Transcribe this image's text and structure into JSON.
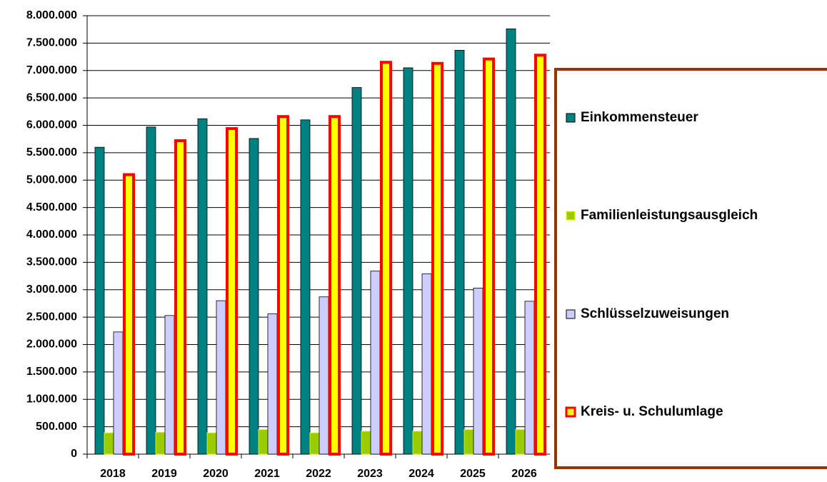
{
  "chart_data": {
    "type": "bar",
    "categories": [
      "2018",
      "2019",
      "2020",
      "2021",
      "2022",
      "2023",
      "2024",
      "2025",
      "2026"
    ],
    "series": [
      {
        "name": "Einkommensteuer",
        "color": "#008080",
        "edgecolor": "#000000",
        "values": [
          5600000,
          5970000,
          6120000,
          5760000,
          6100000,
          6690000,
          7050000,
          7370000,
          7760000
        ]
      },
      {
        "name": "Familienleistungsausgleich",
        "color": "#99cc00",
        "edgecolor": "#ffff00",
        "values": [
          390000,
          400000,
          390000,
          450000,
          390000,
          420000,
          420000,
          450000,
          450000
        ]
      },
      {
        "name": "Schlüsselzuweisungen",
        "color": "#ccccff",
        "edgecolor": "#000000",
        "values": [
          2230000,
          2530000,
          2800000,
          2560000,
          2870000,
          3340000,
          3290000,
          3030000,
          2790000
        ]
      },
      {
        "name": "Kreis- u. Schulumlage",
        "color": "#ffff00",
        "edgecolor": "#ff0000",
        "values": [
          5100000,
          5720000,
          5940000,
          6160000,
          6160000,
          7150000,
          7130000,
          7210000,
          7280000
        ]
      }
    ],
    "ylim": [
      0,
      8000000
    ],
    "yticks": [
      0,
      {
        "value": 500000,
        "label": "500.000"
      },
      {
        "value": 1000000,
        "label": "1.000.000"
      },
      {
        "value": 1500000,
        "label": "1.500.000"
      },
      {
        "value": 2000000,
        "label": "2.000.000"
      },
      {
        "value": 2500000,
        "label": "2.500.000"
      },
      {
        "value": 3000000,
        "label": "3.000.000"
      },
      {
        "value": 3500000,
        "label": "3.500.000"
      },
      {
        "value": 4000000,
        "label": "4.000.000"
      },
      {
        "value": 4500000,
        "label": "4.500.000"
      },
      {
        "value": 5000000,
        "label": "5.000.000"
      },
      {
        "value": 5500000,
        "label": "5.500.000"
      },
      {
        "value": 6000000,
        "label": "6.000.000"
      },
      {
        "value": 6500000,
        "label": "6.500.000"
      },
      {
        "value": 7000000,
        "label": "7.000.000"
      },
      {
        "value": 7500000,
        "label": "7.500.000"
      },
      {
        "value": 8000000,
        "label": "8.000.000"
      }
    ],
    "grid": true,
    "legend": "right"
  }
}
